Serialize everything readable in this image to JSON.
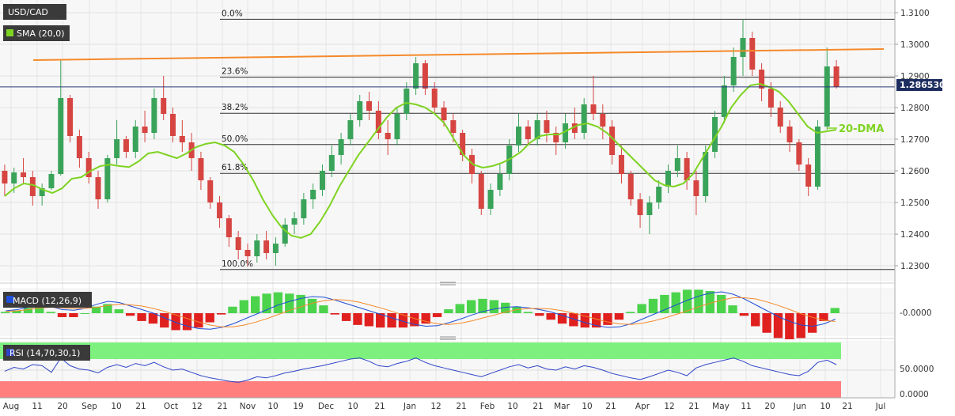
{
  "chart_data": [
    {
      "type": "candlestick",
      "panel": "price",
      "symbol": "USD/CAD",
      "indicator_tag": "SMA (20,0)",
      "current_price": "1.286530",
      "y_ticks": [
        "1.3100",
        "1.3000",
        "1.2900",
        "1.2800",
        "1.2700",
        "1.2600",
        "1.2500",
        "1.2400",
        "1.2300"
      ],
      "ylim": [
        1.226,
        1.313
      ],
      "x_ticks": [
        "Aug",
        "11",
        "20",
        "Sep",
        "10",
        "21",
        "Oct",
        "12",
        "21",
        "Nov",
        "10",
        "19",
        "Dec",
        "10",
        "21",
        "Jan",
        "12",
        "21",
        "Feb",
        "10",
        "21",
        "Mar",
        "10",
        "21",
        "Apr",
        "12",
        "21",
        "May",
        "11",
        "20",
        "Jun",
        "10",
        "21",
        "Jul"
      ],
      "fibonacci_levels": [
        {
          "label": "0.0%",
          "value": 1.3079
        },
        {
          "label": "23.6%",
          "value": 1.2896
        },
        {
          "label": "38.2%",
          "value": 1.2782
        },
        {
          "label": "50.0%",
          "value": 1.2683
        },
        {
          "label": "61.8%",
          "value": 1.2592
        },
        {
          "label": "100.0%",
          "value": 1.2288
        }
      ],
      "trendline": {
        "from": 1.295,
        "to": 1.2985
      },
      "annotation": "20-DMA",
      "sma_20": [
        1.252,
        1.2545,
        1.256,
        1.2555,
        1.254,
        1.253,
        1.2545,
        1.2575,
        1.258,
        1.26,
        1.2615,
        1.262,
        1.2615,
        1.2612,
        1.263,
        1.2655,
        1.266,
        1.265,
        1.264,
        1.2655,
        1.2675,
        1.2685,
        1.269,
        1.268,
        1.266,
        1.262,
        1.257,
        1.251,
        1.246,
        1.242,
        1.2395,
        1.2388,
        1.24,
        1.244,
        1.249,
        1.255,
        1.26,
        1.265,
        1.269,
        1.273,
        1.277,
        1.28,
        1.2815,
        1.281,
        1.28,
        1.278,
        1.275,
        1.27,
        1.265,
        1.262,
        1.261,
        1.2615,
        1.2625,
        1.264,
        1.266,
        1.269,
        1.271,
        1.2715,
        1.2715,
        1.273,
        1.2745,
        1.275,
        1.274,
        1.272,
        1.269,
        1.266,
        1.263,
        1.26,
        1.257,
        1.2555,
        1.255,
        1.256,
        1.259,
        1.264,
        1.269,
        1.274,
        1.28,
        1.284,
        1.287,
        1.2875,
        1.2865,
        1.285,
        1.282,
        1.278,
        1.274,
        1.272,
        1.2725,
        1.273
      ],
      "candles": [
        [
          1.26,
          1.262,
          1.252,
          1.256
        ],
        [
          1.256,
          1.261,
          1.253,
          1.2595
        ],
        [
          1.2595,
          1.264,
          1.256,
          1.258
        ],
        [
          1.258,
          1.26,
          1.249,
          1.252
        ],
        [
          1.252,
          1.256,
          1.249,
          1.2545
        ],
        [
          1.2545,
          1.26,
          1.254,
          1.259
        ],
        [
          1.259,
          1.295,
          1.2585,
          1.283
        ],
        [
          1.283,
          1.284,
          1.269,
          1.271
        ],
        [
          1.271,
          1.273,
          1.261,
          1.264
        ],
        [
          1.264,
          1.266,
          1.256,
          1.258
        ],
        [
          1.258,
          1.26,
          1.248,
          1.251
        ],
        [
          1.251,
          1.265,
          1.25,
          1.264
        ],
        [
          1.264,
          1.276,
          1.262,
          1.27
        ],
        [
          1.27,
          1.271,
          1.264,
          1.266
        ],
        [
          1.266,
          1.276,
          1.264,
          1.274
        ],
        [
          1.274,
          1.279,
          1.269,
          1.272
        ],
        [
          1.272,
          1.286,
          1.27,
          1.283
        ],
        [
          1.283,
          1.29,
          1.276,
          1.278
        ],
        [
          1.278,
          1.28,
          1.269,
          1.271
        ],
        [
          1.271,
          1.276,
          1.266,
          1.269
        ],
        [
          1.269,
          1.272,
          1.26,
          1.264
        ],
        [
          1.264,
          1.266,
          1.254,
          1.257
        ],
        [
          1.257,
          1.258,
          1.248,
          1.25
        ],
        [
          1.25,
          1.252,
          1.242,
          1.245
        ],
        [
          1.245,
          1.246,
          1.236,
          1.239
        ],
        [
          1.239,
          1.241,
          1.232,
          1.235
        ],
        [
          1.235,
          1.237,
          1.23,
          1.233
        ],
        [
          1.233,
          1.24,
          1.231,
          1.238
        ],
        [
          1.238,
          1.241,
          1.232,
          1.234
        ],
        [
          1.234,
          1.239,
          1.23,
          1.237
        ],
        [
          1.237,
          1.245,
          1.236,
          1.243
        ],
        [
          1.243,
          1.247,
          1.24,
          1.245
        ],
        [
          1.245,
          1.253,
          1.243,
          1.251
        ],
        [
          1.251,
          1.256,
          1.248,
          1.254
        ],
        [
          1.254,
          1.262,
          1.252,
          1.26
        ],
        [
          1.26,
          1.268,
          1.258,
          1.265
        ],
        [
          1.265,
          1.272,
          1.262,
          1.27
        ],
        [
          1.27,
          1.278,
          1.268,
          1.276
        ],
        [
          1.276,
          1.284,
          1.274,
          1.282
        ],
        [
          1.282,
          1.285,
          1.276,
          1.279
        ],
        [
          1.279,
          1.282,
          1.27,
          1.272
        ],
        [
          1.272,
          1.276,
          1.265,
          1.27
        ],
        [
          1.27,
          1.28,
          1.268,
          1.278
        ],
        [
          1.278,
          1.288,
          1.276,
          1.286
        ],
        [
          1.286,
          1.296,
          1.284,
          1.294
        ],
        [
          1.294,
          1.295,
          1.284,
          1.286
        ],
        [
          1.286,
          1.288,
          1.278,
          1.28
        ],
        [
          1.28,
          1.282,
          1.274,
          1.276
        ],
        [
          1.276,
          1.278,
          1.269,
          1.272
        ],
        [
          1.272,
          1.273,
          1.263,
          1.265
        ],
        [
          1.265,
          1.267,
          1.256,
          1.259
        ],
        [
          1.259,
          1.26,
          1.246,
          1.248
        ],
        [
          1.248,
          1.256,
          1.246,
          1.254
        ],
        [
          1.254,
          1.262,
          1.252,
          1.259
        ],
        [
          1.259,
          1.27,
          1.257,
          1.268
        ],
        [
          1.268,
          1.278,
          1.266,
          1.274
        ],
        [
          1.274,
          1.276,
          1.268,
          1.27
        ],
        [
          1.27,
          1.278,
          1.268,
          1.276
        ],
        [
          1.276,
          1.279,
          1.269,
          1.272
        ],
        [
          1.272,
          1.274,
          1.265,
          1.269
        ],
        [
          1.269,
          1.278,
          1.267,
          1.275
        ],
        [
          1.275,
          1.28,
          1.27,
          1.272
        ],
        [
          1.272,
          1.283,
          1.27,
          1.281
        ],
        [
          1.281,
          1.29,
          1.276,
          1.278
        ],
        [
          1.278,
          1.281,
          1.27,
          1.274
        ],
        [
          1.274,
          1.276,
          1.262,
          1.265
        ],
        [
          1.265,
          1.268,
          1.256,
          1.259
        ],
        [
          1.259,
          1.26,
          1.249,
          1.251
        ],
        [
          1.251,
          1.253,
          1.242,
          1.246
        ],
        [
          1.246,
          1.252,
          1.24,
          1.25
        ],
        [
          1.25,
          1.257,
          1.248,
          1.255
        ],
        [
          1.255,
          1.262,
          1.253,
          1.26
        ],
        [
          1.26,
          1.268,
          1.258,
          1.264
        ],
        [
          1.264,
          1.266,
          1.254,
          1.257
        ],
        [
          1.257,
          1.26,
          1.246,
          1.252
        ],
        [
          1.252,
          1.268,
          1.25,
          1.266
        ],
        [
          1.266,
          1.279,
          1.264,
          1.277
        ],
        [
          1.277,
          1.29,
          1.275,
          1.287
        ],
        [
          1.287,
          1.299,
          1.285,
          1.296
        ],
        [
          1.296,
          1.3079,
          1.29,
          1.302
        ],
        [
          1.302,
          1.304,
          1.29,
          1.292
        ],
        [
          1.292,
          1.294,
          1.282,
          1.286
        ],
        [
          1.286,
          1.288,
          1.277,
          1.28
        ],
        [
          1.28,
          1.282,
          1.272,
          1.274
        ],
        [
          1.274,
          1.276,
          1.266,
          1.269
        ],
        [
          1.269,
          1.27,
          1.26,
          1.262
        ],
        [
          1.262,
          1.264,
          1.252,
          1.255
        ],
        [
          1.255,
          1.276,
          1.254,
          1.274
        ],
        [
          1.274,
          1.299,
          1.273,
          1.293
        ],
        [
          1.293,
          1.295,
          1.286,
          1.2865
        ]
      ]
    },
    {
      "type": "macd",
      "panel": "macd",
      "label": "MACD (12,26,9)",
      "y_tick": "-0.0000",
      "macd": [
        0.4,
        0.6,
        1.0,
        1.4,
        1.1,
        0.6,
        0.5,
        0.8,
        1.5,
        2.0,
        1.8,
        1.2,
        0.6,
        0.0,
        -0.8,
        -1.6,
        -2.2,
        -2.6,
        -2.7,
        -2.4,
        -1.8,
        -1.0,
        -0.2,
        0.6,
        1.4,
        2.0,
        2.5,
        2.8,
        2.7,
        2.2,
        1.6,
        1.0,
        0.4,
        -0.2,
        -0.8,
        -1.4,
        -1.9,
        -2.2,
        -2.1,
        -1.6,
        -1.0,
        -0.3,
        0.3,
        0.7,
        1.0,
        1.1,
        0.9,
        0.6,
        0.2,
        -0.4,
        -1.0,
        -1.6,
        -2.1,
        -2.4,
        -2.3,
        -1.8,
        -1.0,
        -0.2,
        0.6,
        1.4,
        2.2,
        2.9,
        3.4,
        3.6,
        3.2,
        2.4,
        1.4,
        0.4,
        -0.6,
        -1.4,
        -2.0,
        -2.2,
        -1.8,
        -1.0
      ],
      "signal": [
        0.3,
        0.4,
        0.6,
        0.9,
        1.0,
        0.9,
        0.8,
        0.8,
        1.0,
        1.3,
        1.5,
        1.4,
        1.2,
        0.8,
        0.3,
        -0.3,
        -0.9,
        -1.5,
        -2.0,
        -2.3,
        -2.3,
        -2.0,
        -1.5,
        -0.9,
        -0.2,
        0.5,
        1.1,
        1.7,
        2.1,
        2.3,
        2.2,
        1.9,
        1.4,
        0.9,
        0.3,
        -0.3,
        -0.9,
        -1.4,
        -1.8,
        -1.9,
        -1.7,
        -1.3,
        -0.8,
        -0.3,
        0.2,
        0.6,
        0.8,
        0.8,
        0.7,
        0.4,
        0.0,
        -0.5,
        -1.0,
        -1.5,
        -1.8,
        -1.9,
        -1.7,
        -1.3,
        -0.8,
        -0.2,
        0.4,
        1.1,
        1.7,
        2.2,
        2.6,
        2.6,
        2.4,
        1.9,
        1.3,
        0.6,
        -0.1,
        -0.7,
        -1.2,
        -1.4
      ]
    },
    {
      "type": "line",
      "panel": "rsi",
      "label": "RSI (14,70,30,1)",
      "y_ticks": [
        "50.0000",
        "0.0000"
      ],
      "ylim": [
        0,
        100
      ],
      "upper": 70,
      "lower": 30,
      "values": [
        48,
        55,
        52,
        60,
        58,
        46,
        72,
        58,
        52,
        50,
        45,
        55,
        60,
        55,
        62,
        58,
        64,
        56,
        50,
        52,
        46,
        40,
        36,
        33,
        30,
        28,
        32,
        38,
        36,
        40,
        45,
        48,
        52,
        55,
        58,
        62,
        66,
        70,
        72,
        66,
        58,
        56,
        62,
        66,
        72,
        64,
        58,
        54,
        50,
        46,
        42,
        38,
        44,
        50,
        56,
        60,
        54,
        58,
        52,
        50,
        56,
        52,
        58,
        55,
        50,
        44,
        40,
        36,
        33,
        38,
        44,
        50,
        46,
        40,
        54,
        60,
        64,
        68,
        72,
        66,
        58,
        54,
        50,
        46,
        42,
        40,
        48,
        64,
        68,
        60
      ]
    }
  ]
}
